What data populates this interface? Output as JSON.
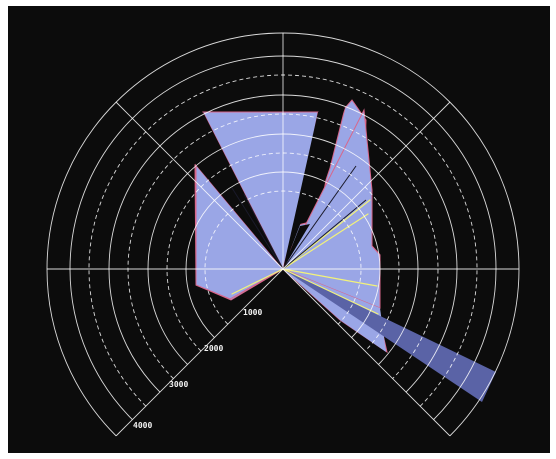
{
  "display": {
    "background_color": "#0c0c0c",
    "grid_color": "#ffffff",
    "scan_fill_color": "#9aa6e6",
    "scan_outline_color": "#d8668a",
    "far_beam_color": "#5a63a6",
    "highlight_ray_color": "#f2f27a"
  },
  "range_rings": {
    "labels": [
      "1000",
      "2000",
      "3000",
      "4000"
    ],
    "solid_rings": 4,
    "dashed_rings": 4
  },
  "sectors": {
    "angular_spacing_deg": 45,
    "field_of_view_deg": 270
  }
}
